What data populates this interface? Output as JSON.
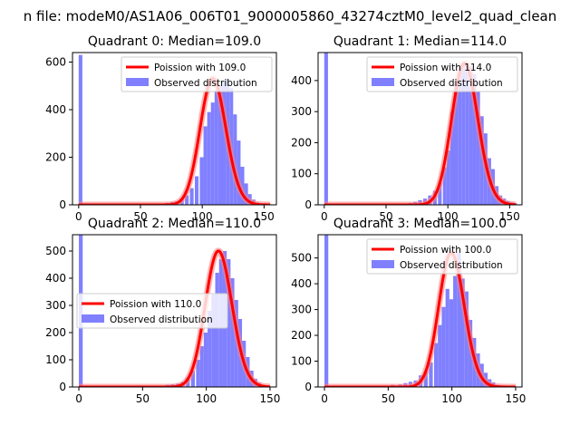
{
  "figure": {
    "title": "n file: modeM0/AS1A06_006T01_9000005860_43274cztM0_level2_quad_clean"
  },
  "colors": {
    "histogram": "#8080ff",
    "poisson": "#ff0000",
    "poisson_band": "#ff8080"
  },
  "chart_data": [
    {
      "type": "bar",
      "title": "Quadrant 0: Median=109.0",
      "xlim": [
        -5,
        160
      ],
      "ylim": [
        0,
        640
      ],
      "xticks": [
        0,
        50,
        100,
        150
      ],
      "yticks": [
        0,
        200,
        400,
        600
      ],
      "median": 109.0,
      "legend": {
        "position": "top-right",
        "poisson_label": "Poission with 109.0",
        "hist_label": "Observed distribution"
      },
      "bins": [
        [
          0,
          630
        ],
        [
          66,
          5
        ],
        [
          70,
          8
        ],
        [
          74,
          12
        ],
        [
          78,
          15
        ],
        [
          82,
          25
        ],
        [
          86,
          40
        ],
        [
          90,
          70
        ],
        [
          94,
          120
        ],
        [
          98,
          200
        ],
        [
          101,
          330
        ],
        [
          104,
          390
        ],
        [
          107,
          430
        ],
        [
          110,
          480
        ],
        [
          113,
          500
        ],
        [
          116,
          520
        ],
        [
          119,
          530
        ],
        [
          122,
          490
        ],
        [
          125,
          380
        ],
        [
          128,
          270
        ],
        [
          131,
          160
        ],
        [
          134,
          90
        ],
        [
          137,
          45
        ],
        [
          140,
          22
        ],
        [
          143,
          10
        ],
        [
          146,
          5
        ]
      ]
    },
    {
      "type": "bar",
      "title": "Quadrant 1: Median=114.0",
      "xlim": [
        -5,
        160
      ],
      "ylim": [
        0,
        490
      ],
      "xticks": [
        0,
        50,
        100,
        150
      ],
      "yticks": [
        0,
        100,
        200,
        300,
        400
      ],
      "median": 114.0,
      "legend": {
        "position": "top-right",
        "poisson_label": "Poission with 114.0",
        "hist_label": "Observed distribution"
      },
      "bins": [
        [
          0,
          490
        ],
        [
          68,
          6
        ],
        [
          72,
          10
        ],
        [
          76,
          15
        ],
        [
          80,
          20
        ],
        [
          84,
          30
        ],
        [
          88,
          45
        ],
        [
          92,
          70
        ],
        [
          96,
          120
        ],
        [
          99,
          175
        ],
        [
          102,
          300
        ],
        [
          105,
          395
        ],
        [
          108,
          435
        ],
        [
          111,
          450
        ],
        [
          114,
          455
        ],
        [
          117,
          445
        ],
        [
          120,
          420
        ],
        [
          123,
          365
        ],
        [
          126,
          285
        ],
        [
          129,
          230
        ],
        [
          132,
          150
        ],
        [
          135,
          115
        ],
        [
          138,
          60
        ],
        [
          141,
          30
        ],
        [
          144,
          20
        ],
        [
          147,
          12
        ],
        [
          150,
          8
        ],
        [
          153,
          5
        ]
      ]
    },
    {
      "type": "bar",
      "title": "Quadrant 2: Median=110.0",
      "xlim": [
        -5,
        155
      ],
      "ylim": [
        0,
        560
      ],
      "xticks": [
        0,
        50,
        100,
        150
      ],
      "yticks": [
        0,
        100,
        200,
        300,
        400,
        500
      ],
      "median": 110.0,
      "legend": {
        "position": "center-left",
        "poisson_label": "Poission with 110.0",
        "hist_label": "Observed distribution"
      },
      "bins": [
        [
          0,
          560
        ],
        [
          64,
          5
        ],
        [
          68,
          8
        ],
        [
          72,
          10
        ],
        [
          76,
          12
        ],
        [
          80,
          18
        ],
        [
          84,
          35
        ],
        [
          88,
          60
        ],
        [
          92,
          100
        ],
        [
          95,
          150
        ],
        [
          98,
          200
        ],
        [
          101,
          280
        ],
        [
          104,
          340
        ],
        [
          107,
          420
        ],
        [
          110,
          470
        ],
        [
          113,
          500
        ],
        [
          116,
          470
        ],
        [
          119,
          400
        ],
        [
          122,
          320
        ],
        [
          125,
          250
        ],
        [
          128,
          170
        ],
        [
          131,
          110
        ],
        [
          134,
          60
        ],
        [
          137,
          30
        ],
        [
          140,
          15
        ],
        [
          143,
          6
        ]
      ]
    },
    {
      "type": "bar",
      "title": "Quadrant 3: Median=100.0",
      "xlim": [
        -5,
        155
      ],
      "ylim": [
        0,
        590
      ],
      "xticks": [
        0,
        50,
        100,
        150
      ],
      "yticks": [
        0,
        100,
        200,
        300,
        400,
        500
      ],
      "median": 100.0,
      "legend": {
        "position": "top-right",
        "poisson_label": "Poission with 100.0",
        "hist_label": "Observed distribution"
      },
      "bins": [
        [
          0,
          590
        ],
        [
          46,
          5
        ],
        [
          52,
          8
        ],
        [
          58,
          10
        ],
        [
          62,
          15
        ],
        [
          66,
          20
        ],
        [
          70,
          25
        ],
        [
          74,
          45
        ],
        [
          78,
          60
        ],
        [
          82,
          95
        ],
        [
          86,
          170
        ],
        [
          89,
          240
        ],
        [
          92,
          310
        ],
        [
          95,
          380
        ],
        [
          98,
          340
        ],
        [
          101,
          430
        ],
        [
          104,
          520
        ],
        [
          107,
          420
        ],
        [
          110,
          370
        ],
        [
          113,
          260
        ],
        [
          116,
          190
        ],
        [
          119,
          130
        ],
        [
          122,
          90
        ],
        [
          125,
          55
        ],
        [
          128,
          30
        ],
        [
          131,
          18
        ],
        [
          134,
          8
        ],
        [
          137,
          4
        ]
      ]
    }
  ]
}
